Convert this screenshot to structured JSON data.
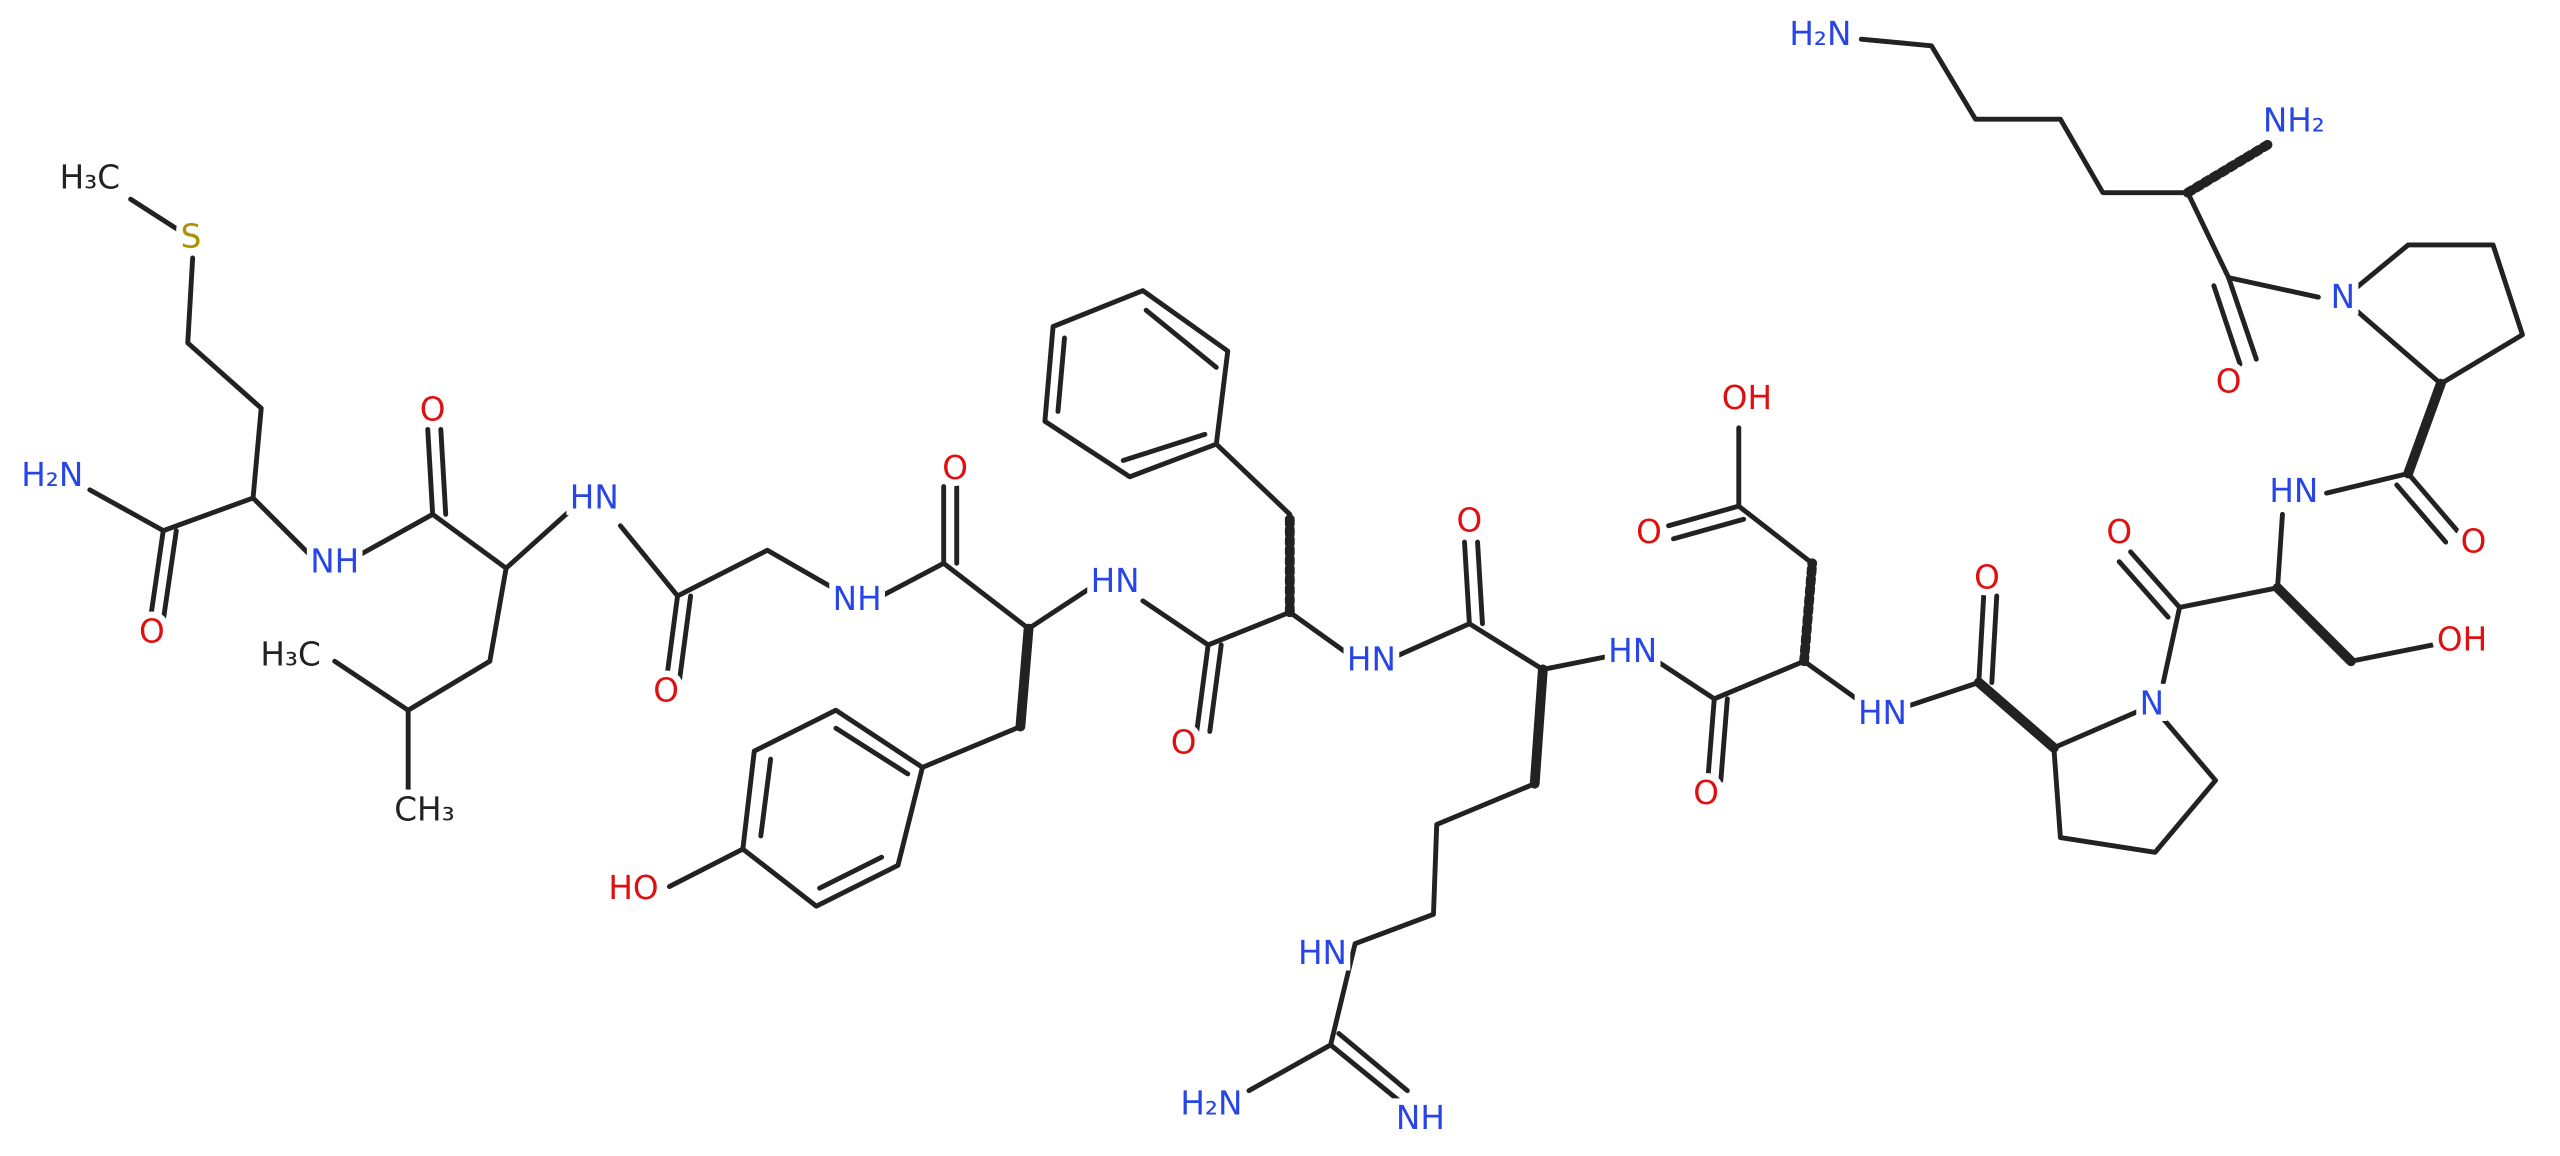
{
  "atoms": [
    "H₂N",
    "NH₂",
    "N",
    "O",
    "HN",
    "O",
    "O",
    "OH",
    "N",
    "O",
    "HN",
    "OH",
    "O",
    "HN",
    "O",
    "O",
    "HN",
    "HN",
    "H₂N",
    "NH",
    "O",
    "HN",
    "O",
    "NH",
    "HO",
    "O",
    "HN",
    "O",
    "NH",
    "H₃C",
    "CH₃",
    "O",
    "H₂N",
    "S",
    "H₃C"
  ]
}
